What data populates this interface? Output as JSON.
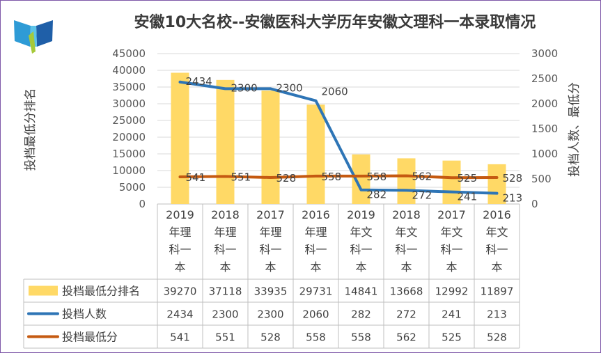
{
  "chart_data": {
    "type": "bar",
    "title": "安徽10大名校--安徽医科大学历年安徽文理科一本录取情况",
    "ylabel": "投档最低分排名",
    "y2label": "投档人数、最低分",
    "ylim": [
      0,
      45000
    ],
    "y2lim": [
      0,
      3000
    ],
    "yticks": [
      "0",
      "5000",
      "10000",
      "15000",
      "20000",
      "25000",
      "30000",
      "35000",
      "40000",
      "45000"
    ],
    "y2ticks": [
      "0",
      "500",
      "1000",
      "1500",
      "2000",
      "2500",
      "3000"
    ],
    "categories": [
      [
        "2019",
        "年理",
        "科一",
        "本"
      ],
      [
        "2018",
        "年理",
        "科一",
        "本"
      ],
      [
        "2017",
        "年理",
        "科一",
        "本"
      ],
      [
        "2016",
        "年理",
        "科一",
        "本"
      ],
      [
        "2019",
        "年文",
        "科一",
        "本"
      ],
      [
        "2018",
        "年文",
        "科一",
        "本"
      ],
      [
        "2017",
        "年文",
        "科一",
        "本"
      ],
      [
        "2016",
        "年文",
        "科一",
        "本"
      ]
    ],
    "series": [
      {
        "name": "投档最低分排名",
        "type": "bar",
        "axis": "left",
        "color": "#ffd966",
        "values": [
          39270,
          37118,
          33935,
          29731,
          14841,
          13668,
          12992,
          11897
        ]
      },
      {
        "name": "投档人数",
        "type": "line",
        "axis": "right",
        "color": "#2e75b6",
        "values": [
          2434,
          2300,
          2300,
          2060,
          282,
          272,
          241,
          213
        ]
      },
      {
        "name": "投档最低分",
        "type": "line",
        "axis": "right",
        "color": "#c55a11",
        "values": [
          541,
          551,
          528,
          558,
          558,
          562,
          525,
          528
        ]
      }
    ],
    "grid": true,
    "legend": "data-table"
  },
  "table_values": [
    [
      "39270",
      "37118",
      "33935",
      "29731",
      "14841",
      "13668",
      "12992",
      "11897"
    ],
    [
      "2434",
      "2300",
      "2300",
      "2060",
      "282",
      "272",
      "241",
      "213"
    ],
    [
      "541",
      "551",
      "528",
      "558",
      "558",
      "562",
      "525",
      "528"
    ]
  ],
  "line_labels": [
    [
      "2434",
      "2300",
      "2300",
      "2060",
      "282",
      "272",
      "241",
      "213"
    ],
    [
      "541",
      "551",
      "528",
      "558",
      "558",
      "562",
      "525",
      "528"
    ]
  ],
  "colors": {
    "bar": "#ffd966",
    "line_count": "#2e75b6",
    "line_score": "#c55a11",
    "border": "#7e57a8",
    "grid": "#d9d9d9"
  },
  "logo": {
    "colors": [
      "#2e9bd6",
      "#a6c93a",
      "#1f5fa8",
      "#5cc3e8"
    ]
  }
}
